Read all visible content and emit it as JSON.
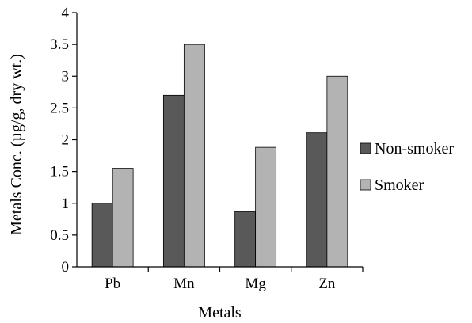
{
  "chart_data": {
    "type": "bar",
    "categories": [
      "Pb",
      "Mn",
      "Mg",
      "Zn"
    ],
    "series": [
      {
        "name": "Non-smoker",
        "values": [
          1.0,
          2.7,
          0.87,
          2.11
        ],
        "color": "#595959"
      },
      {
        "name": "Smoker",
        "values": [
          1.55,
          3.5,
          1.88,
          3.0
        ],
        "color": "#b3b3b3"
      }
    ],
    "title": "",
    "xlabel": "Metals",
    "ylabel": "Metals Conc. (µg/g, dry wt.)",
    "ylim": [
      0,
      4
    ],
    "yticks": [
      "0",
      "0.5",
      "1",
      "1.5",
      "2",
      "2.5",
      "3",
      "3.5",
      "4"
    ],
    "grid": false,
    "legend_position": "right"
  }
}
